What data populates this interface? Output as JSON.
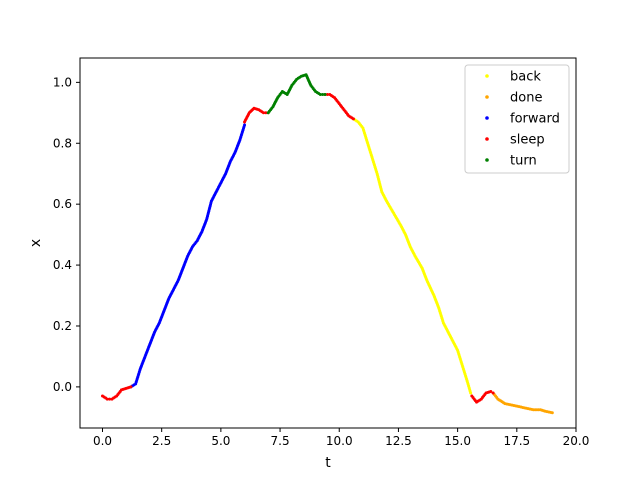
{
  "chart_data": {
    "type": "scatter",
    "title": "",
    "xlabel": "t",
    "ylabel": "x",
    "xlim": [
      -0.95,
      20.0
    ],
    "ylim": [
      -0.135,
      1.08
    ],
    "xticks": [
      0.0,
      2.5,
      5.0,
      7.5,
      10.0,
      12.5,
      15.0,
      17.5,
      20.0
    ],
    "xtick_labels": [
      "0.0",
      "2.5",
      "5.0",
      "7.5",
      "10.0",
      "12.5",
      "15.0",
      "17.5",
      "20.0"
    ],
    "yticks": [
      0.0,
      0.2,
      0.4,
      0.6,
      0.8,
      1.0
    ],
    "ytick_labels": [
      "0.0",
      "0.2",
      "0.4",
      "0.6",
      "0.8",
      "1.0"
    ],
    "grid": false,
    "legend_position": "top-right",
    "legend_order": [
      "back",
      "done",
      "forward",
      "sleep",
      "turn"
    ],
    "series": [
      {
        "name": "back",
        "color": "#ffff00",
        "points": [
          [
            10.6,
            0.88
          ],
          [
            10.8,
            0.87
          ],
          [
            11.0,
            0.85
          ],
          [
            11.2,
            0.8
          ],
          [
            11.4,
            0.75
          ],
          [
            11.6,
            0.7
          ],
          [
            11.8,
            0.64
          ],
          [
            12.0,
            0.61
          ],
          [
            12.3,
            0.57
          ],
          [
            12.6,
            0.53
          ],
          [
            12.8,
            0.5
          ],
          [
            13.0,
            0.46
          ],
          [
            13.2,
            0.43
          ],
          [
            13.5,
            0.39
          ],
          [
            13.7,
            0.35
          ],
          [
            14.0,
            0.3
          ],
          [
            14.2,
            0.26
          ],
          [
            14.4,
            0.21
          ],
          [
            14.6,
            0.18
          ],
          [
            14.8,
            0.15
          ],
          [
            15.0,
            0.12
          ],
          [
            15.2,
            0.07
          ],
          [
            15.4,
            0.02
          ],
          [
            15.55,
            -0.02
          ]
        ]
      },
      {
        "name": "done",
        "color": "#ffa500",
        "points": [
          [
            16.5,
            -0.02
          ],
          [
            16.7,
            -0.04
          ],
          [
            17.0,
            -0.055
          ],
          [
            17.3,
            -0.06
          ],
          [
            17.6,
            -0.065
          ],
          [
            17.9,
            -0.07
          ],
          [
            18.2,
            -0.075
          ],
          [
            18.5,
            -0.075
          ],
          [
            18.7,
            -0.08
          ],
          [
            19.0,
            -0.085
          ]
        ]
      },
      {
        "name": "forward",
        "color": "#0000ff",
        "points": [
          [
            1.2,
            0.0
          ],
          [
            1.4,
            0.01
          ],
          [
            1.6,
            0.06
          ],
          [
            1.8,
            0.1
          ],
          [
            2.0,
            0.14
          ],
          [
            2.2,
            0.18
          ],
          [
            2.4,
            0.21
          ],
          [
            2.6,
            0.25
          ],
          [
            2.8,
            0.29
          ],
          [
            3.0,
            0.32
          ],
          [
            3.2,
            0.35
          ],
          [
            3.4,
            0.39
          ],
          [
            3.6,
            0.43
          ],
          [
            3.8,
            0.46
          ],
          [
            4.0,
            0.48
          ],
          [
            4.2,
            0.51
          ],
          [
            4.4,
            0.55
          ],
          [
            4.6,
            0.61
          ],
          [
            4.8,
            0.64
          ],
          [
            5.0,
            0.67
          ],
          [
            5.2,
            0.7
          ],
          [
            5.4,
            0.74
          ],
          [
            5.6,
            0.77
          ],
          [
            5.8,
            0.81
          ],
          [
            6.0,
            0.86
          ]
        ]
      },
      {
        "name": "sleep",
        "color": "#ff0000",
        "points": [
          [
            0.0,
            -0.03
          ],
          [
            0.2,
            -0.04
          ],
          [
            0.4,
            -0.04
          ],
          [
            0.6,
            -0.03
          ],
          [
            0.8,
            -0.01
          ],
          [
            1.0,
            -0.005
          ],
          [
            1.2,
            0.0
          ],
          [
            6.0,
            0.87
          ],
          [
            6.2,
            0.9
          ],
          [
            6.4,
            0.915
          ],
          [
            6.6,
            0.91
          ],
          [
            6.8,
            0.9
          ],
          [
            7.0,
            0.9
          ],
          [
            9.4,
            0.96
          ],
          [
            9.6,
            0.96
          ],
          [
            9.8,
            0.95
          ],
          [
            10.0,
            0.93
          ],
          [
            10.2,
            0.91
          ],
          [
            10.4,
            0.89
          ],
          [
            10.6,
            0.88
          ],
          [
            15.6,
            -0.03
          ],
          [
            15.8,
            -0.05
          ],
          [
            16.0,
            -0.04
          ],
          [
            16.2,
            -0.02
          ],
          [
            16.4,
            -0.015
          ],
          [
            16.5,
            -0.02
          ]
        ]
      },
      {
        "name": "turn",
        "color": "#008000",
        "points": [
          [
            7.0,
            0.9
          ],
          [
            7.2,
            0.92
          ],
          [
            7.4,
            0.95
          ],
          [
            7.6,
            0.97
          ],
          [
            7.8,
            0.96
          ],
          [
            8.0,
            0.99
          ],
          [
            8.2,
            1.01
          ],
          [
            8.4,
            1.02
          ],
          [
            8.6,
            1.025
          ],
          [
            8.8,
            0.99
          ],
          [
            9.0,
            0.97
          ],
          [
            9.2,
            0.96
          ],
          [
            9.4,
            0.96
          ]
        ]
      }
    ]
  }
}
